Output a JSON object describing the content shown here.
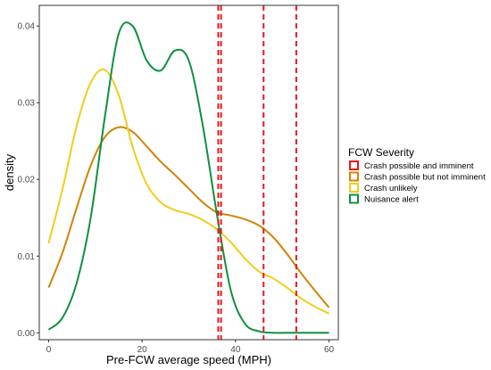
{
  "chart_data": {
    "type": "line",
    "title": "",
    "xlabel": "Pre-FCW average speed (MPH)",
    "ylabel": "density",
    "xlim": [
      -2,
      62
    ],
    "ylim": [
      -0.0009,
      0.0427
    ],
    "x_ticks": [
      0,
      20,
      40,
      60
    ],
    "y_ticks": [
      0.0,
      0.01,
      0.02,
      0.03,
      0.04
    ],
    "y_tick_labels": [
      "0.00",
      "0.01",
      "0.02",
      "0.03",
      "0.04"
    ],
    "grid": false,
    "legend": {
      "title": "FCW Severity",
      "placement": "right"
    },
    "series": [
      {
        "name": "Crash possible and imminent",
        "color": "#e8191c",
        "style": "dashed",
        "vlines": [
          36.3,
          36.9,
          46.0,
          53.0
        ]
      },
      {
        "name": "Crash possible but not imminent",
        "color": "#d08400",
        "style": "solid",
        "x": [
          0,
          3,
          6,
          9,
          12,
          15,
          18,
          21,
          24,
          27,
          30,
          33,
          36,
          39,
          42,
          45,
          48,
          51,
          54,
          57,
          60
        ],
        "y": [
          0.0059,
          0.0105,
          0.0163,
          0.0218,
          0.0255,
          0.0268,
          0.0262,
          0.0243,
          0.0223,
          0.0206,
          0.0188,
          0.017,
          0.0157,
          0.0153,
          0.0148,
          0.014,
          0.0125,
          0.0103,
          0.0078,
          0.0055,
          0.0033
        ]
      },
      {
        "name": "Crash unlikely",
        "color": "#f3cc1a",
        "style": "solid",
        "x": [
          0,
          3,
          6,
          9,
          12,
          15,
          18,
          21,
          24,
          27,
          30,
          33,
          36,
          39,
          42,
          45,
          48,
          51,
          54,
          57,
          60
        ],
        "y": [
          0.0117,
          0.0188,
          0.027,
          0.0326,
          0.0343,
          0.031,
          0.0242,
          0.0194,
          0.017,
          0.016,
          0.0155,
          0.0147,
          0.0135,
          0.0118,
          0.0097,
          0.008,
          0.0071,
          0.0059,
          0.0045,
          0.0034,
          0.0025
        ]
      },
      {
        "name": "Nuisance alert",
        "color": "#109040",
        "style": "solid",
        "x": [
          0,
          3,
          6,
          9,
          12,
          15,
          18,
          21,
          24,
          27,
          30,
          33,
          36,
          39,
          42,
          45,
          48,
          51,
          54,
          57,
          60
        ],
        "y": [
          0.0004,
          0.002,
          0.0065,
          0.015,
          0.028,
          0.039,
          0.04,
          0.0355,
          0.0342,
          0.0368,
          0.0355,
          0.027,
          0.0155,
          0.0055,
          0.0012,
          0.0002,
          0.0,
          0.0,
          0.0,
          0.0,
          0.0
        ]
      }
    ]
  }
}
